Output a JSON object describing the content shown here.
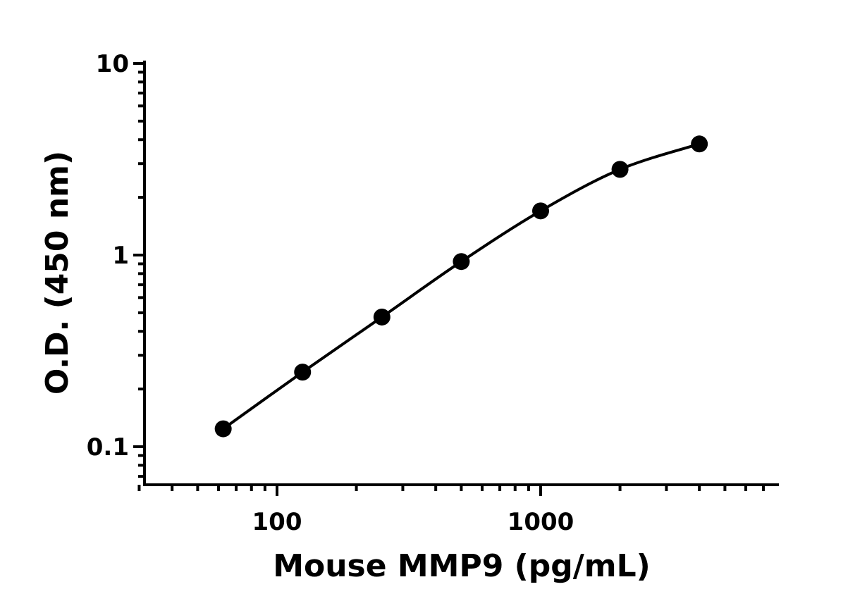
{
  "chart_data": {
    "type": "scatter",
    "title": "",
    "xlabel": "Mouse MMP9 (pg/mL)",
    "ylabel": "O.D. (450 nm)",
    "xscale": "log",
    "yscale": "log",
    "xlim": [
      30,
      7500
    ],
    "ylim": [
      0.065,
      10
    ],
    "x_tick_labels": [
      "100",
      "1000"
    ],
    "y_tick_labels": [
      "0.1",
      "1",
      "10"
    ],
    "grid": false,
    "legend": "none",
    "fit_curve": true,
    "series": [
      {
        "x": [
          62.5,
          125,
          250,
          500,
          1000,
          2000,
          4000
        ],
        "y": [
          0.124,
          0.245,
          0.475,
          0.925,
          1.7,
          2.8,
          3.8
        ]
      }
    ],
    "colors": {
      "marker": "#000000",
      "line": "#000000",
      "axis": "#000000"
    }
  }
}
